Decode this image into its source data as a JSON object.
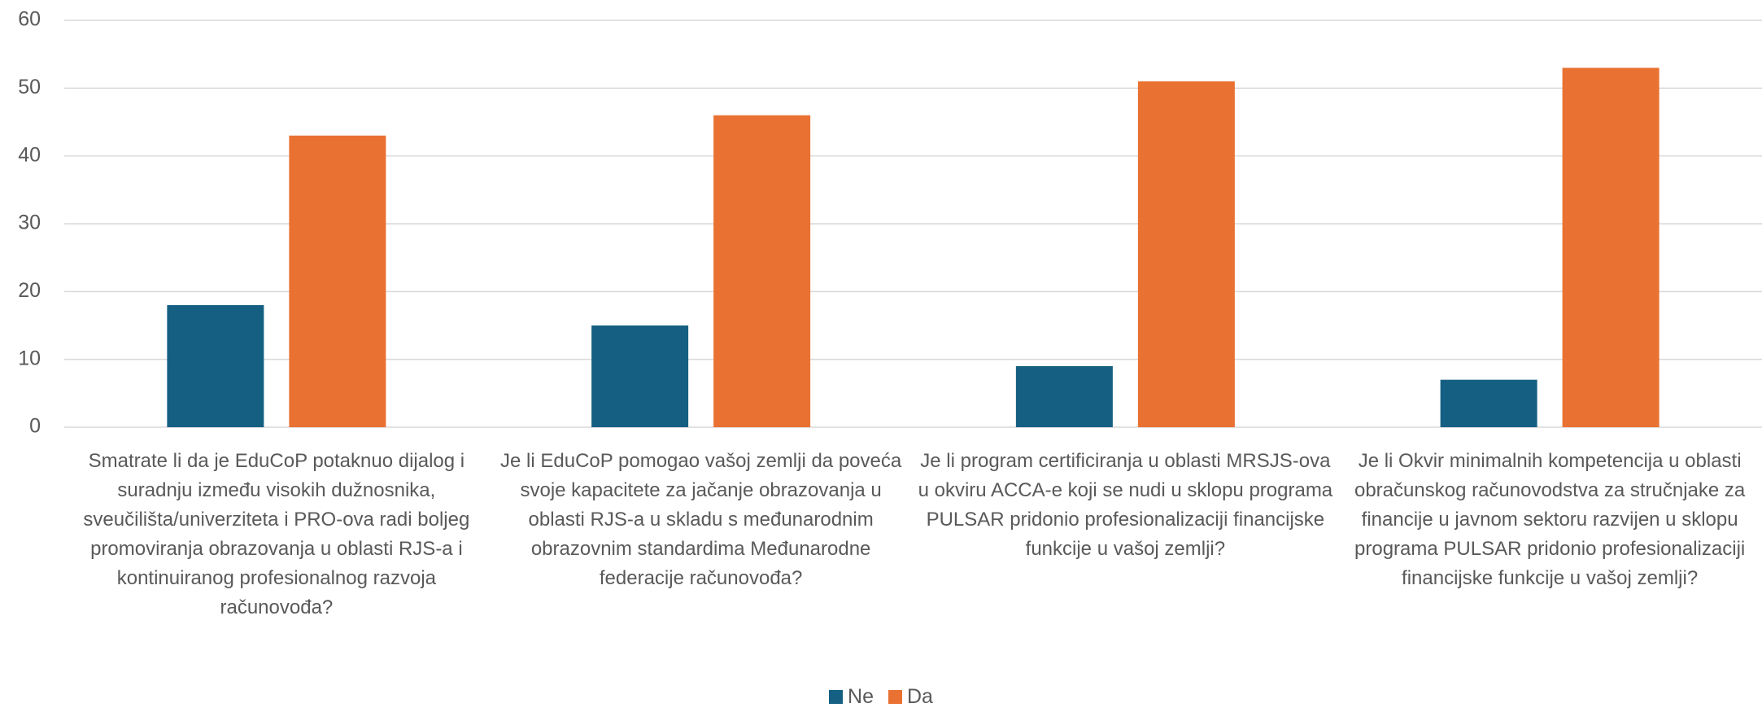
{
  "chart_data": {
    "type": "bar",
    "categories": [
      "Smatrate li da je EduCoP potaknuo dijalog i suradnju između visokih dužnosnika, sveučilišta/univerziteta i PRO-ova radi boljeg promoviranja obrazovanja u oblasti RJS-a i kontinuiranog profesionalnog razvoja računovođa?",
      "Je li EduCoP pomogao vašoj zemlji da poveća svoje kapacitete za jačanje obrazovanja u oblasti RJS-a u skladu s međunarodnim obrazovnim standardima Međunarodne federacije računovođa?",
      "Je li program certificiranja u oblasti MRSJS-ova u okviru ACCA-e koji se nudi u sklopu programa PULSAR pridonio profesionalizaciji financijske funkcije u vašoj zemlji?",
      "Je li Okvir minimalnih kompetencija u oblasti obračunskog računovodstva za stručnjake za financije u javnom sektoru razvijen u sklopu programa PULSAR pridonio profesionalizaciji financijske funkcije u vašoj zemlji?"
    ],
    "series": [
      {
        "name": "Ne",
        "color": "#156082",
        "values": [
          18,
          15,
          9,
          7
        ]
      },
      {
        "name": "Da",
        "color": "#e97132",
        "values": [
          43,
          46,
          51,
          53
        ]
      }
    ],
    "ylim": [
      0,
      60
    ],
    "yticks": [
      0,
      10,
      20,
      30,
      40,
      50,
      60
    ],
    "grid": true,
    "legend": "bottom"
  }
}
